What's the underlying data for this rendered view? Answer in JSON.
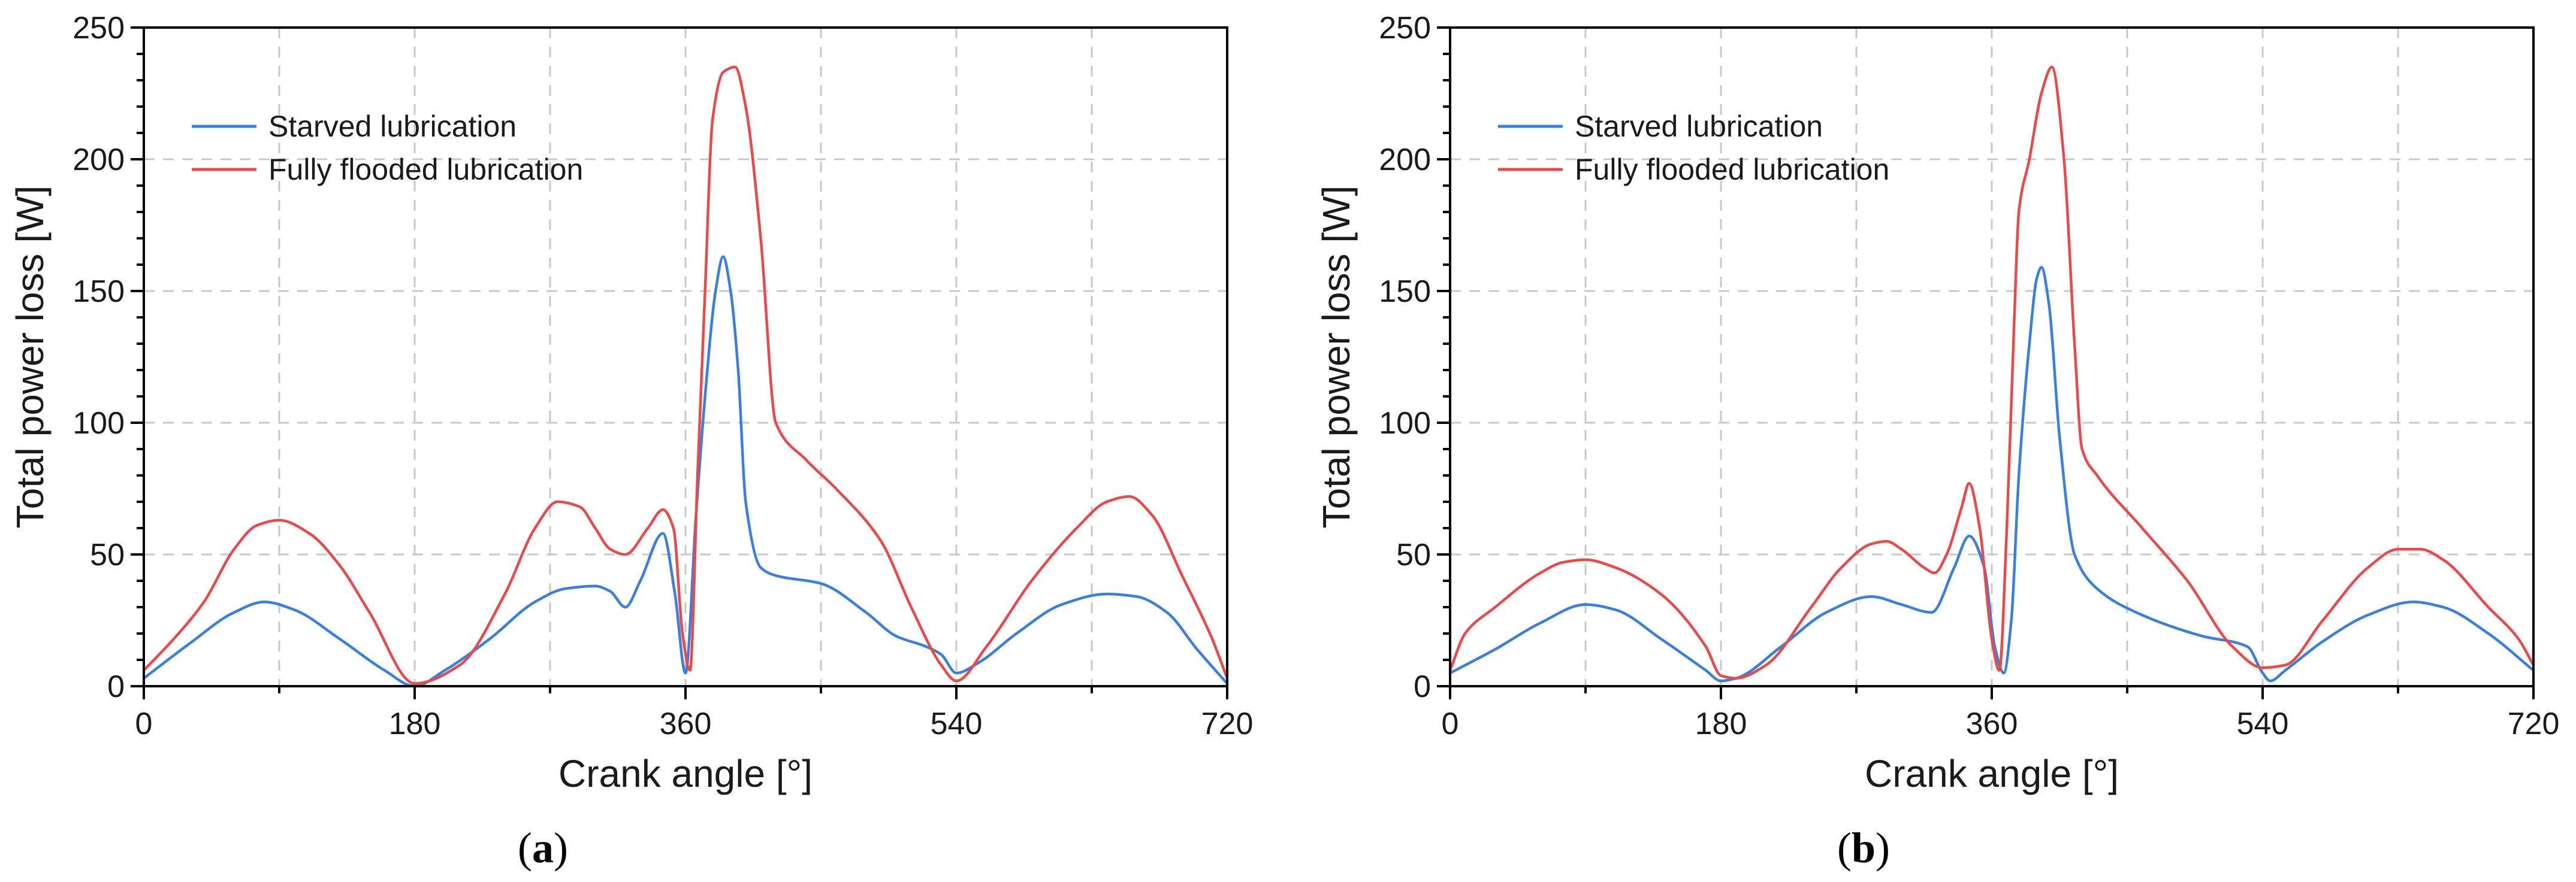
{
  "chart_data": [
    {
      "type": "line",
      "panel_label": "a",
      "xlabel": "Crank angle [°]",
      "ylabel": "Total power loss [W]",
      "xlim": [
        0,
        720
      ],
      "ylim": [
        0,
        250
      ],
      "xticks": [
        0,
        180,
        360,
        540,
        720
      ],
      "yticks": [
        0,
        50,
        100,
        150,
        200,
        250
      ],
      "grid": true,
      "legend_position": "top-left",
      "series": [
        {
          "name": "Starved lubrication",
          "color": "#3a7fe0",
          "x": [
            0,
            30,
            60,
            80,
            100,
            130,
            160,
            180,
            200,
            230,
            260,
            280,
            300,
            310,
            320,
            330,
            345,
            353,
            360,
            367,
            373,
            380,
            385,
            390,
            395,
            400,
            410,
            420,
            450,
            480,
            500,
            520,
            530,
            540,
            555,
            580,
            610,
            640,
            660,
            680,
            700,
            720
          ],
          "y": [
            3,
            16,
            28,
            32,
            29,
            18,
            6,
            0,
            6,
            18,
            32,
            37,
            38,
            36,
            30,
            40,
            58,
            35,
            5,
            65,
            110,
            150,
            163,
            150,
            120,
            70,
            45,
            42,
            39,
            28,
            19,
            15,
            12,
            5,
            9,
            20,
            31,
            35,
            34,
            28,
            14,
            1
          ]
        },
        {
          "name": "Fully flooded lubrication",
          "color": "#e84a4a",
          "x": [
            0,
            20,
            40,
            60,
            75,
            90,
            110,
            130,
            150,
            180,
            210,
            240,
            260,
            275,
            290,
            300,
            310,
            320,
            335,
            345,
            352,
            358,
            363,
            368,
            373,
            378,
            385,
            393,
            400,
            410,
            420,
            440,
            460,
            490,
            510,
            530,
            540,
            560,
            590,
            620,
            640,
            655,
            670,
            690,
            710,
            720
          ],
          "y": [
            6,
            18,
            32,
            52,
            61,
            63,
            58,
            46,
            28,
            1,
            8,
            35,
            60,
            70,
            68,
            60,
            52,
            50,
            60,
            67,
            60,
            20,
            6,
            80,
            150,
            215,
            233,
            235,
            220,
            170,
            100,
            86,
            75,
            55,
            30,
            8,
            2,
            15,
            40,
            60,
            70,
            72,
            65,
            42,
            18,
            3
          ]
        }
      ]
    },
    {
      "type": "line",
      "panel_label": "b",
      "xlabel": "Crank angle [°]",
      "ylabel": "Total power loss [W]",
      "xlim": [
        0,
        720
      ],
      "ylim": [
        0,
        250
      ],
      "xticks": [
        0,
        180,
        360,
        540,
        720
      ],
      "yticks": [
        0,
        50,
        100,
        150,
        200,
        250
      ],
      "grid": true,
      "legend_position": "top-left",
      "series": [
        {
          "name": "Starved lubrication",
          "color": "#3a7fe0",
          "x": [
            0,
            30,
            60,
            90,
            110,
            140,
            170,
            180,
            190,
            220,
            250,
            280,
            300,
            320,
            335,
            345,
            355,
            362,
            368,
            373,
            378,
            385,
            390,
            393,
            398,
            405,
            415,
            430,
            460,
            500,
            530,
            540,
            545,
            555,
            580,
            610,
            640,
            660,
            690,
            720
          ],
          "y": [
            5,
            14,
            24,
            31,
            29,
            18,
            6,
            2,
            3,
            15,
            28,
            34,
            31,
            28,
            45,
            57,
            45,
            15,
            5,
            25,
            80,
            130,
            155,
            159,
            145,
            95,
            50,
            37,
            27,
            19,
            15,
            5,
            2,
            6,
            17,
            27,
            32,
            30,
            20,
            6
          ]
        },
        {
          "name": "Fully flooded lubrication",
          "color": "#e84a4a",
          "x": [
            0,
            10,
            30,
            60,
            75,
            90,
            110,
            140,
            170,
            180,
            190,
            210,
            240,
            260,
            280,
            290,
            300,
            315,
            322,
            330,
            340,
            345,
            352,
            360,
            365,
            370,
            375,
            378,
            385,
            393,
            400,
            408,
            415,
            420,
            430,
            460,
            490,
            520,
            540,
            555,
            580,
            610,
            630,
            645,
            660,
            690,
            710,
            720
          ],
          "y": [
            6,
            20,
            30,
            43,
            47,
            48,
            45,
            35,
            15,
            4,
            3,
            8,
            30,
            45,
            54,
            55,
            52,
            45,
            43,
            50,
            68,
            77,
            60,
            18,
            6,
            60,
            140,
            180,
            200,
            225,
            235,
            200,
            130,
            90,
            80,
            60,
            40,
            15,
            7,
            8,
            25,
            45,
            52,
            52,
            48,
            30,
            18,
            8
          ]
        }
      ]
    }
  ]
}
